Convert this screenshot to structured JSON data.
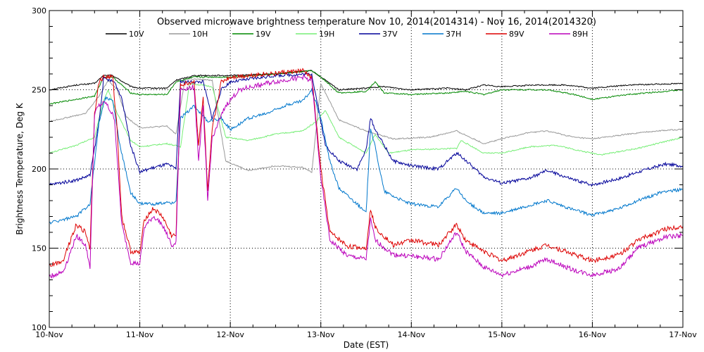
{
  "chart_data": {
    "type": "line",
    "title": "Observed microwave brightness temperature Nov 10, 2014(2014314) - Nov 16, 2014(2014320)",
    "xlabel": "Date (EST)",
    "ylabel": "Brightness Temperature, Deg K",
    "xlim": [
      0,
      7
    ],
    "ylim": [
      100,
      300
    ],
    "xticks": [
      {
        "v": 0,
        "label": "10-Nov"
      },
      {
        "v": 1,
        "label": "11-Nov"
      },
      {
        "v": 2,
        "label": "12-Nov"
      },
      {
        "v": 3,
        "label": "13-Nov"
      },
      {
        "v": 4,
        "label": "14-Nov"
      },
      {
        "v": 5,
        "label": "15-Nov"
      },
      {
        "v": 6,
        "label": "16-Nov"
      },
      {
        "v": 7,
        "label": "17-Nov"
      }
    ],
    "yticks": [
      {
        "v": 100,
        "label": "100"
      },
      {
        "v": 150,
        "label": "150"
      },
      {
        "v": 200,
        "label": "200"
      },
      {
        "v": 250,
        "label": "250"
      },
      {
        "v": 300,
        "label": "300"
      }
    ],
    "grid": "dotted at major ticks",
    "legend_position": "top",
    "series": [
      {
        "name": "10V",
        "color": "#000000",
        "points": [
          [
            0,
            250
          ],
          [
            0.3,
            253
          ],
          [
            0.5,
            254
          ],
          [
            0.6,
            259
          ],
          [
            0.7,
            259
          ],
          [
            0.9,
            252
          ],
          [
            1.0,
            251
          ],
          [
            1.3,
            251
          ],
          [
            1.4,
            256
          ],
          [
            1.6,
            259
          ],
          [
            2.0,
            259
          ],
          [
            2.5,
            260
          ],
          [
            2.9,
            262
          ],
          [
            3.0,
            258
          ],
          [
            3.2,
            250
          ],
          [
            3.5,
            251
          ],
          [
            3.7,
            252
          ],
          [
            4.0,
            250
          ],
          [
            4.4,
            251
          ],
          [
            4.6,
            250
          ],
          [
            4.8,
            253
          ],
          [
            5.0,
            252
          ],
          [
            5.4,
            253
          ],
          [
            5.7,
            253
          ],
          [
            6.0,
            251
          ],
          [
            6.4,
            253
          ],
          [
            7.0,
            254
          ]
        ]
      },
      {
        "name": "10H",
        "color": "#999999",
        "points": [
          [
            0,
            230
          ],
          [
            0.4,
            235
          ],
          [
            0.55,
            246
          ],
          [
            0.65,
            256
          ],
          [
            0.75,
            250
          ],
          [
            0.85,
            233
          ],
          [
            1.0,
            226
          ],
          [
            1.3,
            227
          ],
          [
            1.4,
            222
          ],
          [
            1.5,
            257
          ],
          [
            1.8,
            256
          ],
          [
            1.95,
            205
          ],
          [
            2.2,
            199
          ],
          [
            2.5,
            202
          ],
          [
            2.8,
            201
          ],
          [
            2.9,
            198
          ],
          [
            3.0,
            254
          ],
          [
            3.2,
            231
          ],
          [
            3.5,
            224
          ],
          [
            3.8,
            219
          ],
          [
            4.2,
            220
          ],
          [
            4.5,
            224
          ],
          [
            4.8,
            216
          ],
          [
            5.0,
            219
          ],
          [
            5.3,
            223
          ],
          [
            5.5,
            224
          ],
          [
            5.8,
            220
          ],
          [
            6.0,
            219
          ],
          [
            6.4,
            222
          ],
          [
            6.7,
            224
          ],
          [
            7.0,
            225
          ]
        ]
      },
      {
        "name": "19V",
        "color": "#008800",
        "points": [
          [
            0,
            241
          ],
          [
            0.3,
            244
          ],
          [
            0.5,
            246
          ],
          [
            0.6,
            258
          ],
          [
            0.7,
            258
          ],
          [
            0.9,
            248
          ],
          [
            1.0,
            247
          ],
          [
            1.3,
            247
          ],
          [
            1.4,
            255
          ],
          [
            1.6,
            258
          ],
          [
            2.0,
            258
          ],
          [
            2.5,
            260
          ],
          [
            2.9,
            262
          ],
          [
            3.0,
            258
          ],
          [
            3.2,
            248
          ],
          [
            3.5,
            249
          ],
          [
            3.6,
            255
          ],
          [
            3.7,
            248
          ],
          [
            4.0,
            247
          ],
          [
            4.4,
            248
          ],
          [
            4.6,
            249
          ],
          [
            4.8,
            247
          ],
          [
            5.0,
            250
          ],
          [
            5.5,
            250
          ],
          [
            5.8,
            247
          ],
          [
            6.0,
            244
          ],
          [
            6.4,
            247
          ],
          [
            7.0,
            250
          ]
        ]
      },
      {
        "name": "19H",
        "color": "#77ee77",
        "points": [
          [
            0,
            210
          ],
          [
            0.3,
            215
          ],
          [
            0.5,
            220
          ],
          [
            0.6,
            243
          ],
          [
            0.65,
            250
          ],
          [
            0.75,
            235
          ],
          [
            0.9,
            218
          ],
          [
            1.0,
            214
          ],
          [
            1.3,
            216
          ],
          [
            1.45,
            214
          ],
          [
            1.55,
            254
          ],
          [
            1.8,
            252
          ],
          [
            1.95,
            220
          ],
          [
            2.2,
            218
          ],
          [
            2.5,
            222
          ],
          [
            2.8,
            224
          ],
          [
            2.95,
            230
          ],
          [
            3.05,
            237
          ],
          [
            3.2,
            220
          ],
          [
            3.5,
            210
          ],
          [
            3.6,
            222
          ],
          [
            3.75,
            210
          ],
          [
            4.0,
            212
          ],
          [
            4.5,
            213
          ],
          [
            4.55,
            218
          ],
          [
            4.8,
            210
          ],
          [
            5.0,
            210
          ],
          [
            5.3,
            214
          ],
          [
            5.6,
            215
          ],
          [
            5.9,
            211
          ],
          [
            6.1,
            209
          ],
          [
            6.5,
            213
          ],
          [
            7.0,
            220
          ]
        ]
      },
      {
        "name": "37V",
        "color": "#000099",
        "points": [
          [
            0,
            190
          ],
          [
            0.3,
            193
          ],
          [
            0.45,
            196
          ],
          [
            0.55,
            230
          ],
          [
            0.6,
            257
          ],
          [
            0.72,
            255
          ],
          [
            0.8,
            245
          ],
          [
            0.9,
            215
          ],
          [
            1.0,
            198
          ],
          [
            1.1,
            200
          ],
          [
            1.3,
            203
          ],
          [
            1.4,
            200
          ],
          [
            1.45,
            255
          ],
          [
            1.7,
            255
          ],
          [
            1.8,
            232
          ],
          [
            1.9,
            250
          ],
          [
            2.0,
            255
          ],
          [
            2.5,
            259
          ],
          [
            2.9,
            260
          ],
          [
            3.05,
            215
          ],
          [
            3.2,
            205
          ],
          [
            3.4,
            200
          ],
          [
            3.5,
            212
          ],
          [
            3.55,
            232
          ],
          [
            3.6,
            225
          ],
          [
            3.8,
            205
          ],
          [
            4.0,
            202
          ],
          [
            4.3,
            200
          ],
          [
            4.5,
            210
          ],
          [
            4.55,
            208
          ],
          [
            4.8,
            195
          ],
          [
            5.0,
            191
          ],
          [
            5.3,
            194
          ],
          [
            5.5,
            199
          ],
          [
            5.8,
            193
          ],
          [
            6.0,
            190
          ],
          [
            6.3,
            194
          ],
          [
            6.5,
            198
          ],
          [
            6.8,
            203
          ],
          [
            7.0,
            202
          ]
        ]
      },
      {
        "name": "37H",
        "color": "#0077cc",
        "points": [
          [
            0,
            166
          ],
          [
            0.3,
            170
          ],
          [
            0.45,
            178
          ],
          [
            0.55,
            230
          ],
          [
            0.62,
            245
          ],
          [
            0.7,
            243
          ],
          [
            0.78,
            215
          ],
          [
            0.9,
            185
          ],
          [
            1.0,
            178
          ],
          [
            1.2,
            178
          ],
          [
            1.4,
            179
          ],
          [
            1.45,
            232
          ],
          [
            1.6,
            240
          ],
          [
            1.75,
            230
          ],
          [
            1.9,
            232
          ],
          [
            2.0,
            225
          ],
          [
            2.2,
            232
          ],
          [
            2.4,
            235
          ],
          [
            2.6,
            240
          ],
          [
            2.8,
            243
          ],
          [
            2.9,
            250
          ],
          [
            3.0,
            232
          ],
          [
            3.1,
            205
          ],
          [
            3.2,
            188
          ],
          [
            3.4,
            178
          ],
          [
            3.5,
            172
          ],
          [
            3.55,
            226
          ],
          [
            3.6,
            214
          ],
          [
            3.7,
            186
          ],
          [
            3.9,
            180
          ],
          [
            4.0,
            178
          ],
          [
            4.3,
            176
          ],
          [
            4.5,
            188
          ],
          [
            4.6,
            180
          ],
          [
            4.8,
            172
          ],
          [
            5.0,
            172
          ],
          [
            5.3,
            177
          ],
          [
            5.5,
            180
          ],
          [
            5.8,
            174
          ],
          [
            6.0,
            171
          ],
          [
            6.3,
            175
          ],
          [
            6.5,
            180
          ],
          [
            6.8,
            186
          ],
          [
            7.0,
            187
          ]
        ]
      },
      {
        "name": "89V",
        "color": "#dd0000",
        "points": [
          [
            0,
            139
          ],
          [
            0.15,
            142
          ],
          [
            0.2,
            150
          ],
          [
            0.3,
            165
          ],
          [
            0.4,
            160
          ],
          [
            0.45,
            150
          ],
          [
            0.5,
            235
          ],
          [
            0.55,
            255
          ],
          [
            0.6,
            258
          ],
          [
            0.7,
            258
          ],
          [
            0.75,
            225
          ],
          [
            0.8,
            170
          ],
          [
            0.9,
            148
          ],
          [
            1.0,
            147
          ],
          [
            1.05,
            168
          ],
          [
            1.15,
            175
          ],
          [
            1.25,
            170
          ],
          [
            1.35,
            158
          ],
          [
            1.4,
            158
          ],
          [
            1.45,
            253
          ],
          [
            1.6,
            255
          ],
          [
            1.65,
            215
          ],
          [
            1.7,
            245
          ],
          [
            1.75,
            185
          ],
          [
            1.8,
            225
          ],
          [
            1.9,
            255
          ],
          [
            2.0,
            258
          ],
          [
            2.4,
            260
          ],
          [
            2.8,
            262
          ],
          [
            2.9,
            258
          ],
          [
            3.0,
            200
          ],
          [
            3.1,
            160
          ],
          [
            3.3,
            151
          ],
          [
            3.5,
            150
          ],
          [
            3.55,
            175
          ],
          [
            3.6,
            163
          ],
          [
            3.8,
            152
          ],
          [
            4.0,
            155
          ],
          [
            4.3,
            152
          ],
          [
            4.5,
            165
          ],
          [
            4.6,
            155
          ],
          [
            4.8,
            148
          ],
          [
            5.0,
            142
          ],
          [
            5.3,
            148
          ],
          [
            5.5,
            152
          ],
          [
            5.8,
            146
          ],
          [
            6.0,
            142
          ],
          [
            6.3,
            146
          ],
          [
            6.5,
            155
          ],
          [
            6.8,
            162
          ],
          [
            7.0,
            164
          ]
        ]
      },
      {
        "name": "89H",
        "color": "#bb00bb",
        "points": [
          [
            0,
            132
          ],
          [
            0.15,
            135
          ],
          [
            0.2,
            142
          ],
          [
            0.3,
            158
          ],
          [
            0.4,
            152
          ],
          [
            0.45,
            138
          ],
          [
            0.5,
            235
          ],
          [
            0.55,
            240
          ],
          [
            0.62,
            242
          ],
          [
            0.72,
            232
          ],
          [
            0.8,
            165
          ],
          [
            0.9,
            141
          ],
          [
            1.0,
            140
          ],
          [
            1.05,
            163
          ],
          [
            1.15,
            170
          ],
          [
            1.25,
            165
          ],
          [
            1.35,
            152
          ],
          [
            1.4,
            153
          ],
          [
            1.45,
            250
          ],
          [
            1.6,
            252
          ],
          [
            1.65,
            205
          ],
          [
            1.7,
            240
          ],
          [
            1.75,
            180
          ],
          [
            1.8,
            220
          ],
          [
            1.95,
            240
          ],
          [
            2.1,
            250
          ],
          [
            2.4,
            254
          ],
          [
            2.8,
            258
          ],
          [
            2.9,
            256
          ],
          [
            3.0,
            195
          ],
          [
            3.1,
            155
          ],
          [
            3.3,
            145
          ],
          [
            3.5,
            143
          ],
          [
            3.55,
            168
          ],
          [
            3.6,
            155
          ],
          [
            3.8,
            146
          ],
          [
            4.0,
            145
          ],
          [
            4.3,
            143
          ],
          [
            4.5,
            160
          ],
          [
            4.6,
            148
          ],
          [
            4.8,
            138
          ],
          [
            5.0,
            133
          ],
          [
            5.3,
            138
          ],
          [
            5.5,
            143
          ],
          [
            5.8,
            136
          ],
          [
            6.0,
            133
          ],
          [
            6.3,
            137
          ],
          [
            6.5,
            150
          ],
          [
            6.8,
            157
          ],
          [
            7.0,
            158
          ]
        ]
      }
    ]
  }
}
